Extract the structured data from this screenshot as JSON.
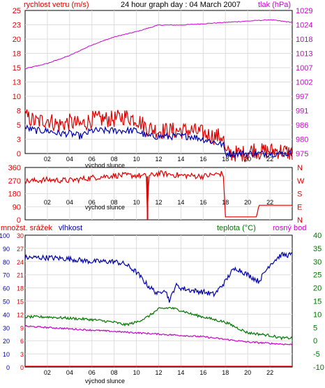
{
  "title": "24 hour graph day : 04 March 2007",
  "colors": {
    "red": "#dd0000",
    "blue": "#0000aa",
    "magenta": "#cc00cc",
    "green": "#007700",
    "grid": "#dddddd"
  },
  "chart_data": [
    {
      "type": "line",
      "panel": "wind-pressure",
      "left_label": "rychlost vetru (m/s)",
      "right_label": "tlak (hPa)",
      "left_ticks": [
        "0",
        "3",
        "5",
        "8",
        "10",
        "13",
        "15",
        "18",
        "20",
        "23",
        "25"
      ],
      "right_ticks": [
        "975",
        "980",
        "986",
        "991",
        "997",
        "1002",
        "1007",
        "1013",
        "1018",
        "1024",
        "1029"
      ],
      "ylim_left": [
        0,
        25
      ],
      "ylim_right": [
        975,
        1029
      ],
      "x_ticks": [
        "02",
        "04",
        "06",
        "08",
        "10",
        "12",
        "14",
        "16",
        "18",
        "20",
        "22"
      ],
      "x_sub_label": "východ slunce",
      "series": [
        {
          "name": "rychlost vetru (m/s)",
          "axis": "left",
          "x": [
            0,
            1,
            2,
            3,
            4,
            5,
            6,
            7,
            8,
            9,
            10,
            11,
            12,
            13,
            14,
            15,
            16,
            17,
            17.8,
            18,
            19,
            20,
            20.5,
            21,
            22,
            23,
            24
          ],
          "values": [
            6.5,
            5.5,
            6,
            5,
            5.5,
            5,
            6,
            6,
            6,
            6.5,
            6,
            4.5,
            4,
            4,
            4,
            4,
            3.5,
            3,
            3,
            0,
            0,
            0,
            0.8,
            0.3,
            0.5,
            0.5,
            0
          ]
        },
        {
          "name": "",
          "axis": "left",
          "x": [
            0,
            1,
            2,
            3,
            4,
            5,
            6,
            7,
            8,
            9,
            10,
            11,
            12,
            13,
            14,
            15,
            16,
            17,
            17.8,
            18,
            24
          ],
          "values": [
            4.5,
            4,
            4,
            3.5,
            3.5,
            3,
            4,
            4,
            4,
            4,
            4,
            3,
            3,
            3,
            3,
            3,
            2.5,
            2,
            1.5,
            0,
            0
          ]
        },
        {
          "name": "tlak (hPa)",
          "axis": "right",
          "x": [
            0,
            2,
            4,
            6,
            8,
            10,
            12,
            14,
            16,
            18,
            20,
            22,
            23,
            24
          ],
          "values": [
            1007,
            1009,
            1012,
            1016,
            1019,
            1021,
            1023.5,
            1023.5,
            1024,
            1024.5,
            1025,
            1025.5,
            1025,
            1024.5
          ]
        }
      ]
    },
    {
      "type": "line",
      "panel": "wind-direction",
      "left_ticks": [
        "0",
        "90",
        "180",
        "270",
        "360"
      ],
      "right_ticks": [
        "N",
        "E",
        "S",
        "W",
        "N"
      ],
      "ylim_left": [
        0,
        360
      ],
      "x_ticks": [
        "02",
        "04",
        "06",
        "08",
        "10",
        "12",
        "14",
        "16",
        "18",
        "20",
        "22"
      ],
      "x_sub_label": "východ slunce",
      "series": [
        {
          "name": "",
          "axis": "left",
          "x": [
            0,
            2,
            4,
            6,
            8,
            10,
            10.9,
            11,
            11.1,
            12,
            14,
            16,
            17.8,
            18,
            18.2,
            20.8,
            21,
            24
          ],
          "values": [
            265,
            275,
            270,
            290,
            305,
            305,
            300,
            0,
            300,
            320,
            305,
            300,
            320,
            20,
            20,
            20,
            100,
            100
          ]
        }
      ]
    },
    {
      "type": "line",
      "panel": "temp-humidity",
      "label_precip": "množst. srážek",
      "label_humidity": "vlhkost",
      "label_temp": "teplota (°C)",
      "label_dew": "rosný bod",
      "precip_ticks": [
        "0",
        "3",
        "6",
        "9",
        "12",
        "15",
        "18",
        "21",
        "24",
        "27",
        "30"
      ],
      "humidity_ticks": [
        "0",
        "10",
        "20",
        "30",
        "40",
        "50",
        "60",
        "70",
        "80",
        "90",
        "100"
      ],
      "temp_ticks": [
        "-10",
        "-5",
        "0",
        "5",
        "10",
        "15",
        "20",
        "25",
        "30",
        "35",
        "40"
      ],
      "ylim_humidity": [
        0,
        100
      ],
      "ylim_temp": [
        -10,
        40
      ],
      "x_ticks": [
        "02",
        "04",
        "06",
        "08",
        "10",
        "12",
        "14",
        "16",
        "18",
        "20",
        "22"
      ],
      "x_sub_label": "východ slunce",
      "series": [
        {
          "name": "vlhkost",
          "axis": "humidity",
          "x": [
            0,
            2,
            4,
            6,
            8,
            9,
            10,
            11,
            12,
            12.5,
            13,
            13.5,
            14,
            15,
            16,
            17,
            18,
            18.5,
            19,
            20,
            21,
            22,
            23,
            24
          ],
          "values": [
            83,
            83,
            82,
            80,
            80,
            78,
            72,
            62,
            55,
            60,
            50,
            62,
            60,
            58,
            57,
            55,
            65,
            72,
            75,
            70,
            65,
            78,
            85,
            85
          ]
        },
        {
          "name": "teplota (°C)",
          "axis": "temp",
          "x": [
            0,
            2,
            4,
            6,
            8,
            9,
            10,
            11,
            12,
            13,
            14,
            15,
            16,
            17,
            18,
            19,
            20,
            22,
            23,
            24
          ],
          "values": [
            9,
            9,
            8.5,
            8,
            7,
            6,
            7,
            9,
            12,
            12.5,
            11.5,
            10,
            9,
            8,
            7,
            5,
            3,
            2,
            1,
            1
          ]
        },
        {
          "name": "rosný bod",
          "axis": "temp",
          "x": [
            0,
            2,
            4,
            6,
            8,
            10,
            12,
            14,
            16,
            18,
            20,
            22,
            24
          ],
          "values": [
            5.5,
            5,
            4.5,
            4,
            3.5,
            3,
            2.5,
            2,
            1.5,
            0.5,
            -0.5,
            -1,
            -1.5
          ]
        },
        {
          "name": "množst. srážek",
          "axis": "precip",
          "x": [
            0,
            24
          ],
          "values": [
            0,
            0
          ]
        }
      ]
    }
  ]
}
